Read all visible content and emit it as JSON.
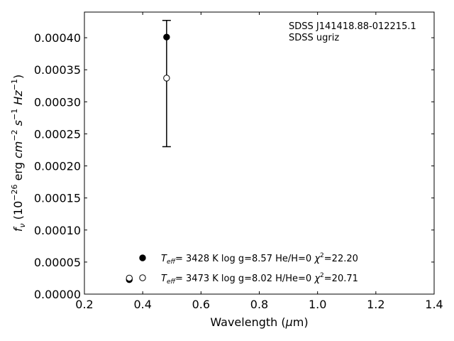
{
  "chart_data": {
    "type": "scatter",
    "title": "",
    "xlabel": "Wavelength (μm)",
    "ylabel": "fν (10⁻²⁶ erg cm⁻² s⁻¹ Hz⁻¹)",
    "xlim": [
      0.2,
      1.4
    ],
    "ylim": [
      0.0,
      0.00044
    ],
    "x_ticks": [
      "0.2",
      "0.4",
      "0.6",
      "0.8",
      "1.0",
      "1.2",
      "1.4"
    ],
    "y_ticks": [
      "0.00000",
      "0.00005",
      "0.00010",
      "0.00015",
      "0.00020",
      "0.00025",
      "0.00030",
      "0.00035",
      "0.00040"
    ],
    "annotation": {
      "line1": "SDSS J141418.88-012215.1",
      "line2": "SDSS ugriz"
    },
    "series": [
      {
        "marker": "filled-circle",
        "legend": {
          "teff": "3428 K",
          "logg": "log g=8.57",
          "comp": "He/H=0",
          "chi2": "=22.20"
        },
        "points": [
          {
            "x": 0.354,
            "y": 2.25e-05
          },
          {
            "x": 0.482,
            "y": 0.000401
          }
        ]
      },
      {
        "marker": "open-circle",
        "legend": {
          "teff": "3473 K",
          "logg": "log g=8.02",
          "comp": "H/He=0",
          "chi2": "=20.71"
        },
        "points": [
          {
            "x": 0.354,
            "y": 2.5e-05
          },
          {
            "x": 0.482,
            "y": 0.000337
          }
        ]
      }
    ],
    "errorbars": [
      {
        "x": 0.482,
        "y": 0.000401,
        "ylow": 0.00023,
        "yhigh": 0.000427
      }
    ],
    "grid": false,
    "legend_position": "lower-center"
  }
}
